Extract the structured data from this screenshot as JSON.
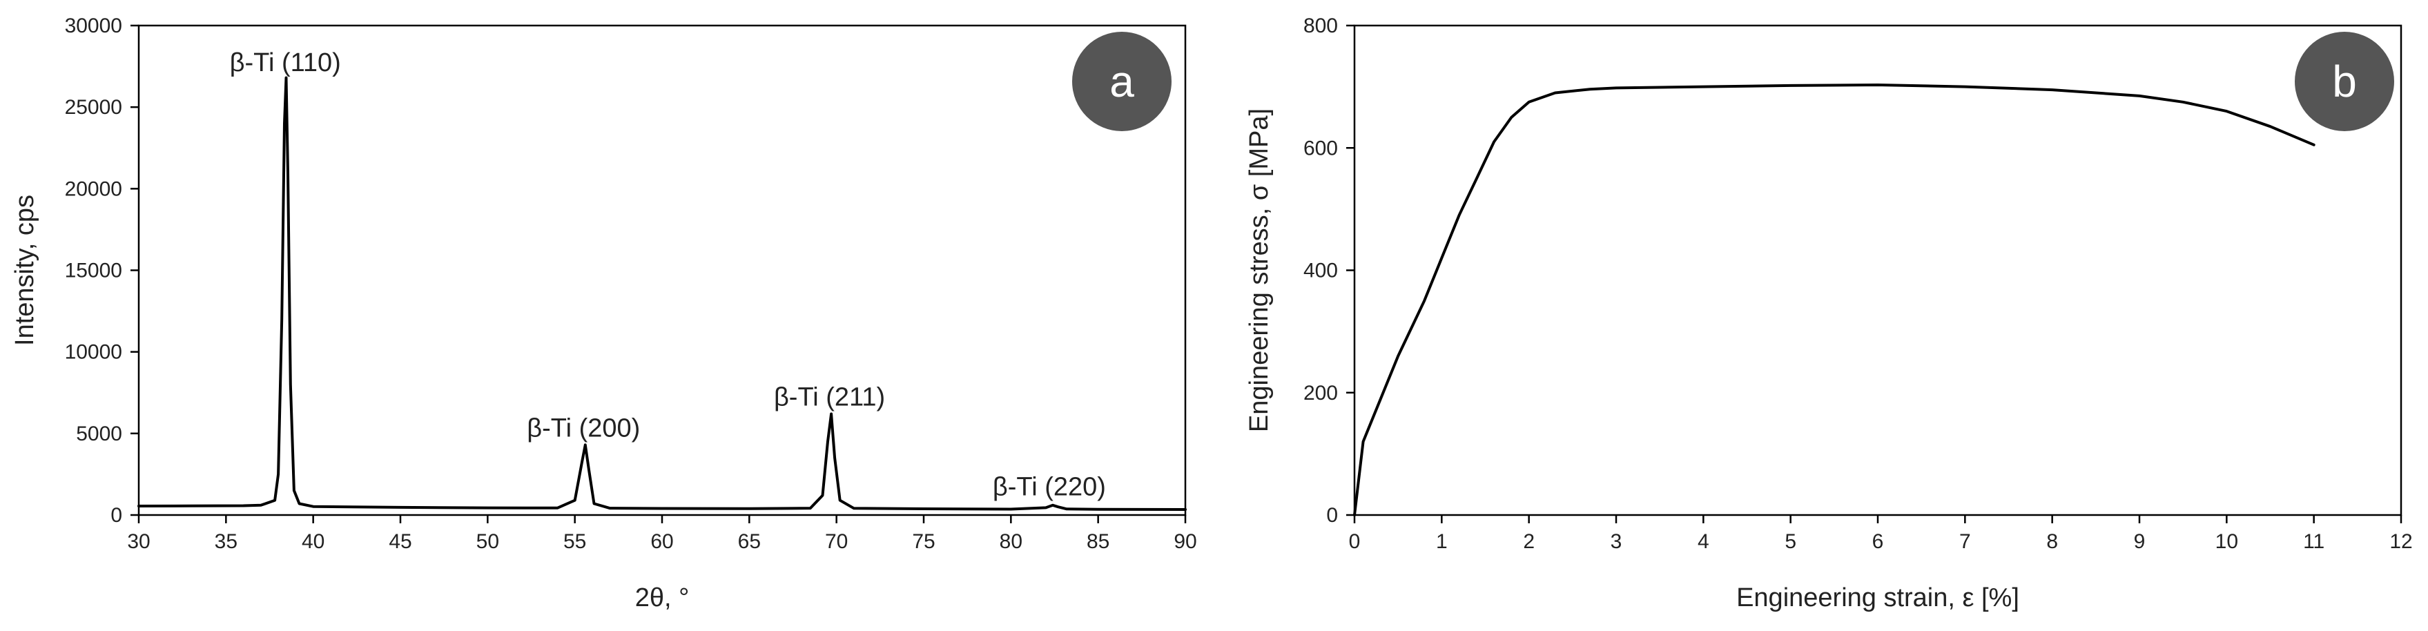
{
  "chart_data": [
    {
      "panel": "a",
      "type": "line",
      "title": "",
      "xlabel": "2θ, °",
      "ylabel": "Intensity, cps",
      "xlim": [
        30,
        90
      ],
      "ylim": [
        0,
        30000
      ],
      "xticks": [
        30,
        35,
        40,
        45,
        50,
        55,
        60,
        65,
        70,
        75,
        80,
        85,
        90
      ],
      "yticks": [
        0,
        5000,
        10000,
        15000,
        20000,
        25000,
        30000
      ],
      "grid": false,
      "badge": {
        "text": "a",
        "color": "#555555"
      },
      "series": [
        {
          "color": "#000000",
          "x": [
            30,
            33,
            36,
            37,
            37.8,
            38.0,
            38.2,
            38.35,
            38.45,
            38.55,
            38.7,
            38.9,
            39.2,
            40,
            45,
            50,
            54,
            55.0,
            55.4,
            55.6,
            55.8,
            56.1,
            57,
            60,
            65,
            68.5,
            69.2,
            69.5,
            69.7,
            69.9,
            70.2,
            71,
            75,
            80,
            82.0,
            82.4,
            82.7,
            83.2,
            85,
            90
          ],
          "y": [
            550,
            560,
            570,
            600,
            900,
            2500,
            12000,
            24000,
            26800,
            21000,
            8000,
            1500,
            700,
            520,
            470,
            440,
            430,
            900,
            3200,
            4300,
            2800,
            700,
            420,
            400,
            390,
            420,
            1200,
            4500,
            6200,
            3500,
            900,
            410,
            380,
            360,
            450,
            600,
            500,
            370,
            350,
            340
          ]
        }
      ],
      "annotations": [
        {
          "text": "β-Ti (110)",
          "x": 38.4,
          "y": 27200
        },
        {
          "text": "β-Ti (200)",
          "x": 55.5,
          "y": 4800
        },
        {
          "text": "β-Ti (211)",
          "x": 69.6,
          "y": 6700
        },
        {
          "text": "β-Ti (220)",
          "x": 82.2,
          "y": 1200
        }
      ]
    },
    {
      "panel": "b",
      "type": "line",
      "title": "",
      "xlabel": "Engineering strain, ε [%]",
      "ylabel": "Engineering stress, σ [MPa]",
      "xlim": [
        0,
        12
      ],
      "ylim": [
        0,
        800
      ],
      "xticks": [
        0,
        1,
        2,
        3,
        4,
        5,
        6,
        7,
        8,
        9,
        10,
        11,
        12
      ],
      "yticks": [
        0,
        200,
        400,
        600,
        800
      ],
      "grid": false,
      "badge": {
        "text": "b",
        "color": "#555555"
      },
      "series": [
        {
          "color": "#000000",
          "x": [
            0,
            0.1,
            0.3,
            0.5,
            0.8,
            1.0,
            1.2,
            1.4,
            1.6,
            1.8,
            2.0,
            2.3,
            2.7,
            3.0,
            4.0,
            5.0,
            6.0,
            7.0,
            8.0,
            9.0,
            9.5,
            10.0,
            10.5,
            11.0
          ],
          "y": [
            0,
            120,
            190,
            260,
            350,
            420,
            490,
            550,
            610,
            650,
            675,
            690,
            696,
            698,
            700,
            702,
            703,
            700,
            695,
            685,
            675,
            660,
            635,
            605
          ]
        }
      ]
    }
  ]
}
